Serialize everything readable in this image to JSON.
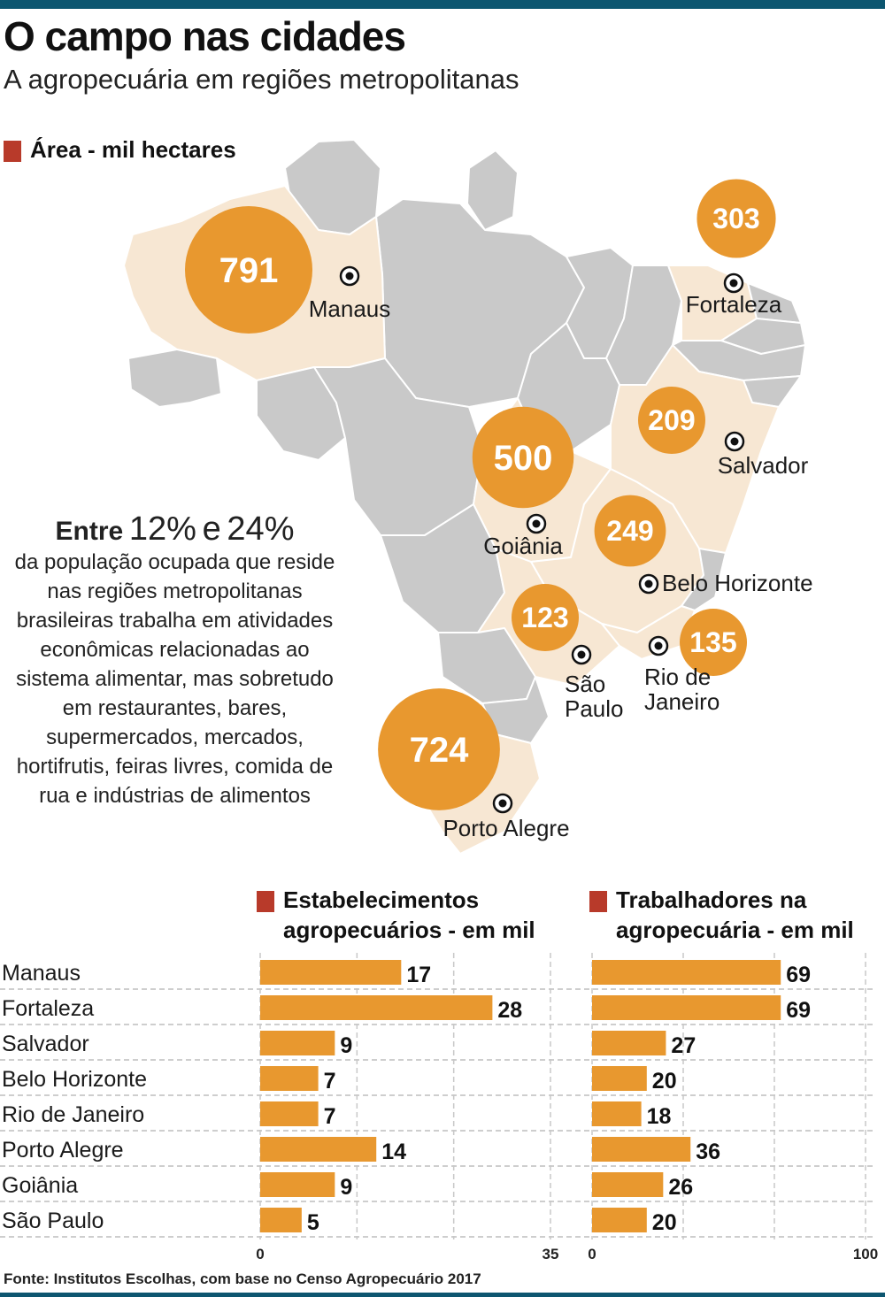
{
  "header": {
    "title": "O campo nas cidades",
    "subtitle": "A agropecuária em regiões metropolitanas"
  },
  "map_section": {
    "heading": "Área - mil hectares"
  },
  "note": {
    "lead": "Entre",
    "range_low": "12%",
    "connector": "e",
    "range_high": "24%",
    "lines": [
      "da população ocupada que reside",
      "nas regiões metropolitanas",
      "brasileiras trabalha em atividades",
      "econômicas relacionadas ao",
      "sistema alimentar, mas sobretudo",
      "em restaurantes, bares,",
      "supermercados, mercados,",
      "hortifrutis, feiras livres, comida de",
      "rua e indústrias de alimentos"
    ]
  },
  "colors": {
    "accent": "#e8982f",
    "marker": "#b83a2a",
    "state_gray": "#c9c9c9",
    "state_highlight": "#f7e7d3",
    "rule": "#0d5670"
  },
  "chart_data": [
    {
      "type": "bubble-map",
      "title": "Área - mil hectares",
      "cities": [
        {
          "name": "Manaus",
          "value": 791
        },
        {
          "name": "Fortaleza",
          "value": 303
        },
        {
          "name": "Salvador",
          "value": 209
        },
        {
          "name": "Goiânia",
          "value": 500
        },
        {
          "name": "Belo Horizonte",
          "value": 249
        },
        {
          "name": "São Paulo",
          "value": 123
        },
        {
          "name": "Rio de Janeiro",
          "value": 135
        },
        {
          "name": "Porto Alegre",
          "value": 724
        }
      ]
    },
    {
      "type": "bar",
      "orientation": "horizontal",
      "title": "Estabelecimentos agropecuários - em mil",
      "title_lines": [
        "Estabelecimentos",
        "agropecuários - em mil"
      ],
      "categories": [
        "Manaus",
        "Fortaleza",
        "Salvador",
        "Belo Horizonte",
        "Rio de Janeiro",
        "Porto Alegre",
        "Goiânia",
        "São Paulo"
      ],
      "values": [
        17,
        28,
        9,
        7,
        7,
        14,
        9,
        5
      ],
      "xlim": [
        0,
        35
      ],
      "ticks": [
        "0",
        "35"
      ]
    },
    {
      "type": "bar",
      "orientation": "horizontal",
      "title": "Trabalhadores na agropecuária - em mil",
      "title_lines": [
        "Trabalhadores na",
        "agropecuária - em mil"
      ],
      "categories": [
        "Manaus",
        "Fortaleza",
        "Salvador",
        "Belo Horizonte",
        "Rio de Janeiro",
        "Porto Alegre",
        "Goiânia",
        "São Paulo"
      ],
      "values": [
        69,
        69,
        27,
        20,
        18,
        36,
        26,
        20
      ],
      "xlim": [
        0,
        100
      ],
      "ticks": [
        "0",
        "100"
      ]
    }
  ],
  "source": "Fonte: Institutos Escolhas, com base no Censo Agropecuário 2017"
}
